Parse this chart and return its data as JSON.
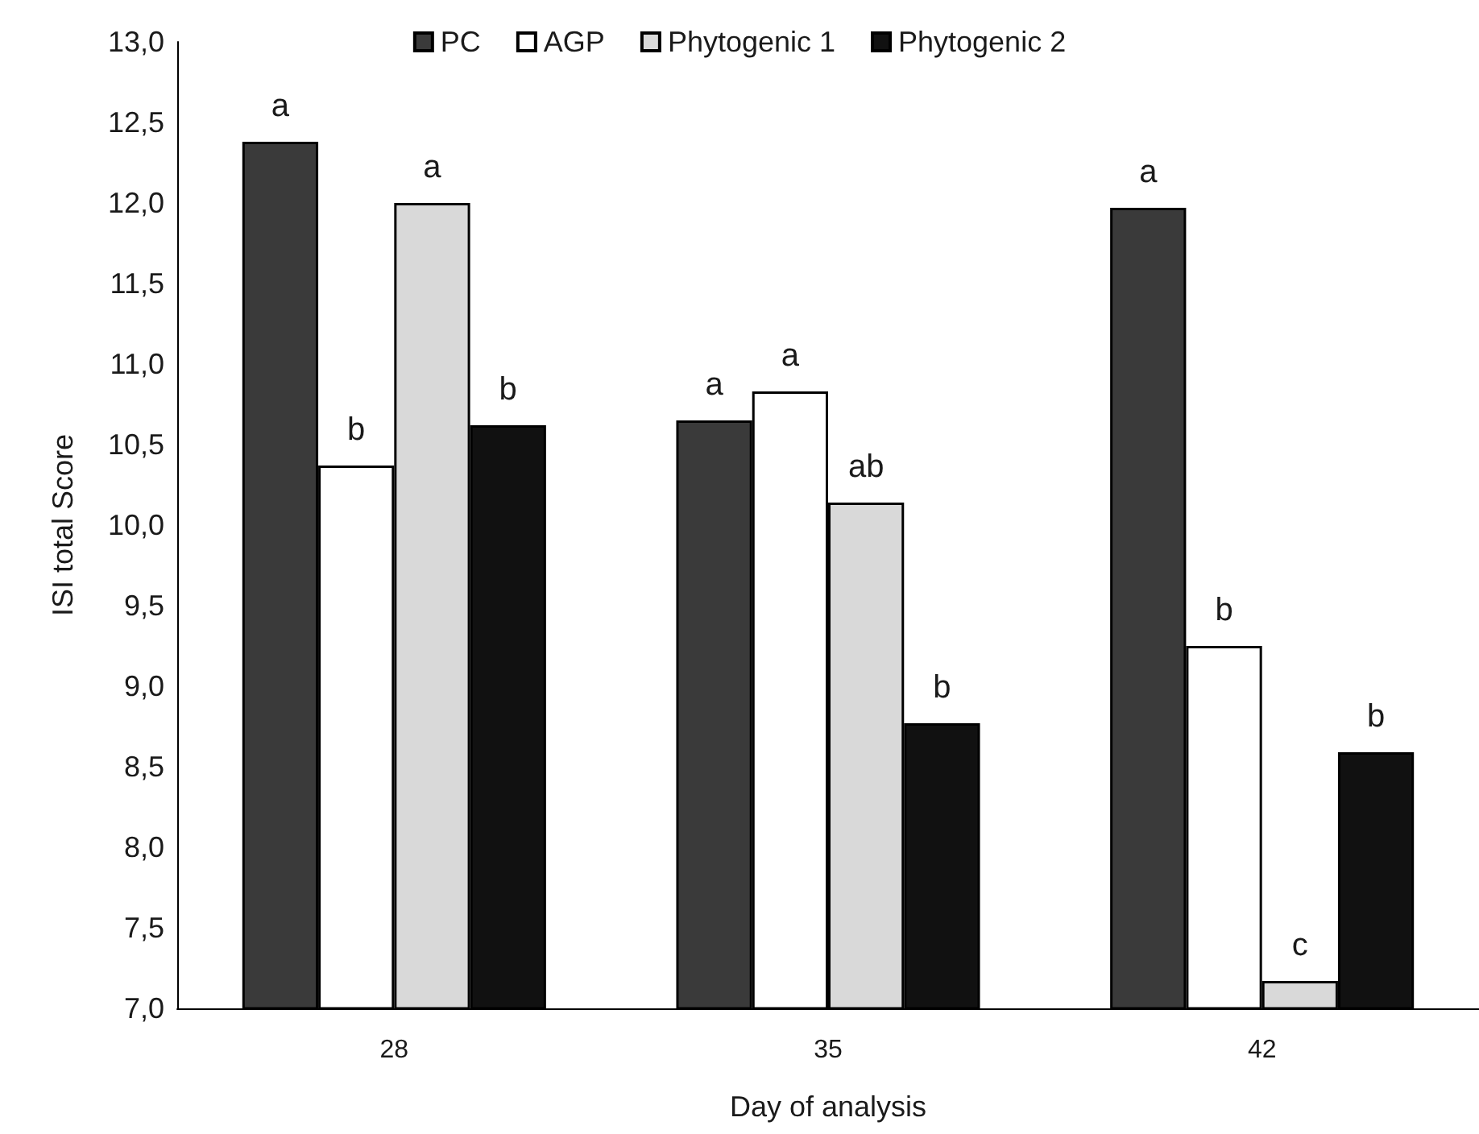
{
  "chart_data": {
    "type": "bar",
    "xlabel": "Day of analysis",
    "ylabel": "ISI total Score",
    "categories": [
      "28",
      "35",
      "42"
    ],
    "series": [
      {
        "name": "PC",
        "color": "#3a3a3a",
        "values": [
          12.38,
          10.65,
          11.97
        ],
        "value_labels": [
          "a",
          "a",
          "a"
        ]
      },
      {
        "name": "AGP",
        "color": "#ffffff",
        "values": [
          10.37,
          10.83,
          9.25
        ],
        "value_labels": [
          "b",
          "a",
          "b"
        ]
      },
      {
        "name": "Phytogenic 1",
        "color": "#d9d9d9",
        "values": [
          12.0,
          10.14,
          7.17
        ],
        "value_labels": [
          "a",
          "ab",
          "c"
        ]
      },
      {
        "name": "Phytogenic 2",
        "color": "#111111",
        "values": [
          10.62,
          8.77,
          8.59
        ],
        "value_labels": [
          "b",
          "b",
          "b"
        ]
      }
    ],
    "ylim": [
      7,
      13
    ],
    "yticks": [
      {
        "value": 7,
        "label": "7,0"
      },
      {
        "value": 7.5,
        "label": "7,5"
      },
      {
        "value": 8,
        "label": "8,0"
      },
      {
        "value": 8.5,
        "label": "8,5"
      },
      {
        "value": 9,
        "label": "9,0"
      },
      {
        "value": 9.5,
        "label": "9,5"
      },
      {
        "value": 10,
        "label": "10,0"
      },
      {
        "value": 10.5,
        "label": "10,5"
      },
      {
        "value": 11,
        "label": "11,0"
      },
      {
        "value": 11.5,
        "label": "11,5"
      },
      {
        "value": 12,
        "label": "12,0"
      },
      {
        "value": 12.5,
        "label": "12,5"
      },
      {
        "value": 13,
        "label": "13,0"
      }
    ],
    "grid": false,
    "legend": "top"
  }
}
